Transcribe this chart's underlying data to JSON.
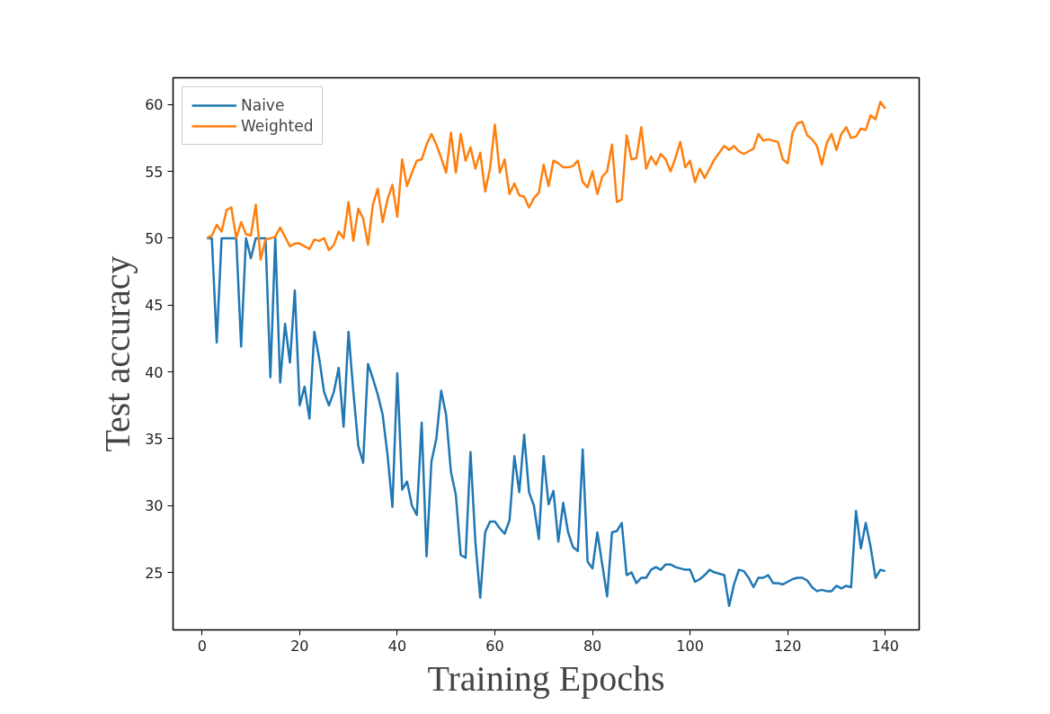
{
  "chart_data": {
    "type": "line",
    "xlabel": "Training Epochs",
    "ylabel": "Test accuracy",
    "x": [
      1,
      2,
      3,
      4,
      5,
      6,
      7,
      8,
      9,
      10,
      11,
      12,
      13,
      14,
      15,
      16,
      17,
      18,
      19,
      20,
      21,
      22,
      23,
      24,
      25,
      26,
      27,
      28,
      29,
      30,
      31,
      32,
      33,
      34,
      35,
      36,
      37,
      38,
      39,
      40,
      41,
      42,
      43,
      44,
      45,
      46,
      47,
      48,
      49,
      50,
      51,
      52,
      53,
      54,
      55,
      56,
      57,
      58,
      59,
      60,
      61,
      62,
      63,
      64,
      65,
      66,
      67,
      68,
      69,
      70,
      71,
      72,
      73,
      74,
      75,
      76,
      77,
      78,
      79,
      80,
      81,
      82,
      83,
      84,
      85,
      86,
      87,
      88,
      89,
      90,
      91,
      92,
      93,
      94,
      95,
      96,
      97,
      98,
      99,
      100,
      101,
      102,
      103,
      104,
      105,
      106,
      107,
      108,
      109,
      110,
      111,
      112,
      113,
      114,
      115,
      116,
      117,
      118,
      119,
      120,
      121,
      122,
      123,
      124,
      125,
      126,
      127,
      128,
      129,
      130,
      131,
      132,
      133,
      134,
      135,
      136,
      137,
      138,
      139,
      140
    ],
    "series": [
      {
        "name": "Naive",
        "color": "#1f77b4",
        "values": [
          50,
          50,
          42.2,
          50,
          50,
          50,
          50,
          41.9,
          50,
          48.5,
          50,
          50,
          50,
          39.6,
          50,
          39.2,
          43.6,
          40.7,
          46.1,
          37.5,
          38.9,
          36.5,
          43.0,
          41,
          38.5,
          37.5,
          38.5,
          40.3,
          35.9,
          43.0,
          38.5,
          34.5,
          33.2,
          40.6,
          39.5,
          38.3,
          36.8,
          33.8,
          29.9,
          39.9,
          31.2,
          31.8,
          30.0,
          29.3,
          36.2,
          26.2,
          33.3,
          35.0,
          38.6,
          36.8,
          32.5,
          30.8,
          26.3,
          26.1,
          34.0,
          27.3,
          23.1,
          28.0,
          28.8,
          28.8,
          28.3,
          27.9,
          28.9,
          33.7,
          31.0,
          35.3,
          31.0,
          30.0,
          27.5,
          33.7,
          30.1,
          31.1,
          27.3,
          30.2,
          28.0,
          26.9,
          26.6,
          34.2,
          25.8,
          25.3,
          28.0,
          25.6,
          23.2,
          28.0,
          28.1,
          28.7,
          24.8,
          25.0,
          24.2,
          24.6,
          24.6,
          25.2,
          25.4,
          25.2,
          25.6,
          25.6,
          25.4,
          25.3,
          25.2,
          25.2,
          24.3,
          24.5,
          24.8,
          25.2,
          25.0,
          24.9,
          24.8,
          22.5,
          24.1,
          25.2,
          25.1,
          24.6,
          23.9,
          24.6,
          24.6,
          24.8,
          24.2,
          24.2,
          24.1,
          24.3,
          24.5,
          24.6,
          24.6,
          24.4,
          23.9,
          23.6,
          23.7,
          23.6,
          23.6,
          24.0,
          23.8,
          24.0,
          23.9,
          29.6,
          26.8,
          28.7,
          26.9,
          24.6,
          25.2,
          25.1
        ]
      },
      {
        "name": "Weighted",
        "color": "#ff7f0e",
        "values": [
          50,
          50.2,
          51,
          50.5,
          52.1,
          52.3,
          50,
          51.2,
          50.3,
          50.2,
          52.5,
          48.4,
          49.9,
          50.0,
          50.1,
          50.8,
          50.1,
          49.4,
          49.6,
          49.6,
          49.4,
          49.2,
          49.9,
          49.8,
          50.0,
          49.1,
          49.5,
          50.5,
          50.0,
          52.7,
          49.8,
          52.2,
          51.5,
          49.5,
          52.5,
          53.7,
          51.2,
          52.9,
          54.0,
          51.6,
          55.9,
          53.9,
          54.9,
          55.8,
          55.9,
          57.0,
          57.8,
          57.0,
          56.0,
          54.9,
          57.9,
          54.9,
          57.8,
          55.8,
          56.8,
          55.2,
          56.4,
          53.5,
          55.2,
          58.5,
          54.9,
          55.9,
          53.3,
          54.1,
          53.2,
          53.1,
          52.3,
          53.0,
          53.4,
          55.5,
          53.9,
          55.8,
          55.6,
          55.3,
          55.3,
          55.4,
          55.8,
          54.2,
          53.8,
          55.0,
          53.3,
          54.6,
          55.0,
          57.0,
          52.7,
          52.9,
          57.7,
          55.9,
          56.0,
          58.3,
          55.2,
          56.1,
          55.5,
          56.3,
          55.9,
          55.0,
          56.0,
          57.2,
          55.3,
          55.8,
          54.2,
          55.2,
          54.5,
          55.2,
          55.9,
          56.4,
          56.9,
          56.6,
          56.9,
          56.5,
          56.3,
          56.5,
          56.7,
          57.8,
          57.3,
          57.4,
          57.3,
          57.2,
          55.9,
          55.6,
          57.9,
          58.6,
          58.7,
          57.7,
          57.4,
          56.9,
          55.5,
          57.1,
          57.8,
          56.6,
          57.8,
          58.3,
          57.5,
          57.6,
          58.2,
          58.1,
          59.2,
          58.9,
          60.2,
          59.7
        ]
      }
    ],
    "xlim": [
      -5.95,
      146.95
    ],
    "ylim": [
      20.7,
      62.0
    ],
    "xticks": [
      0,
      20,
      40,
      60,
      80,
      100,
      120,
      140
    ],
    "yticks": [
      25,
      30,
      35,
      40,
      45,
      50,
      55,
      60
    ],
    "grid": false,
    "legend": "top left",
    "line_style": "solid"
  }
}
